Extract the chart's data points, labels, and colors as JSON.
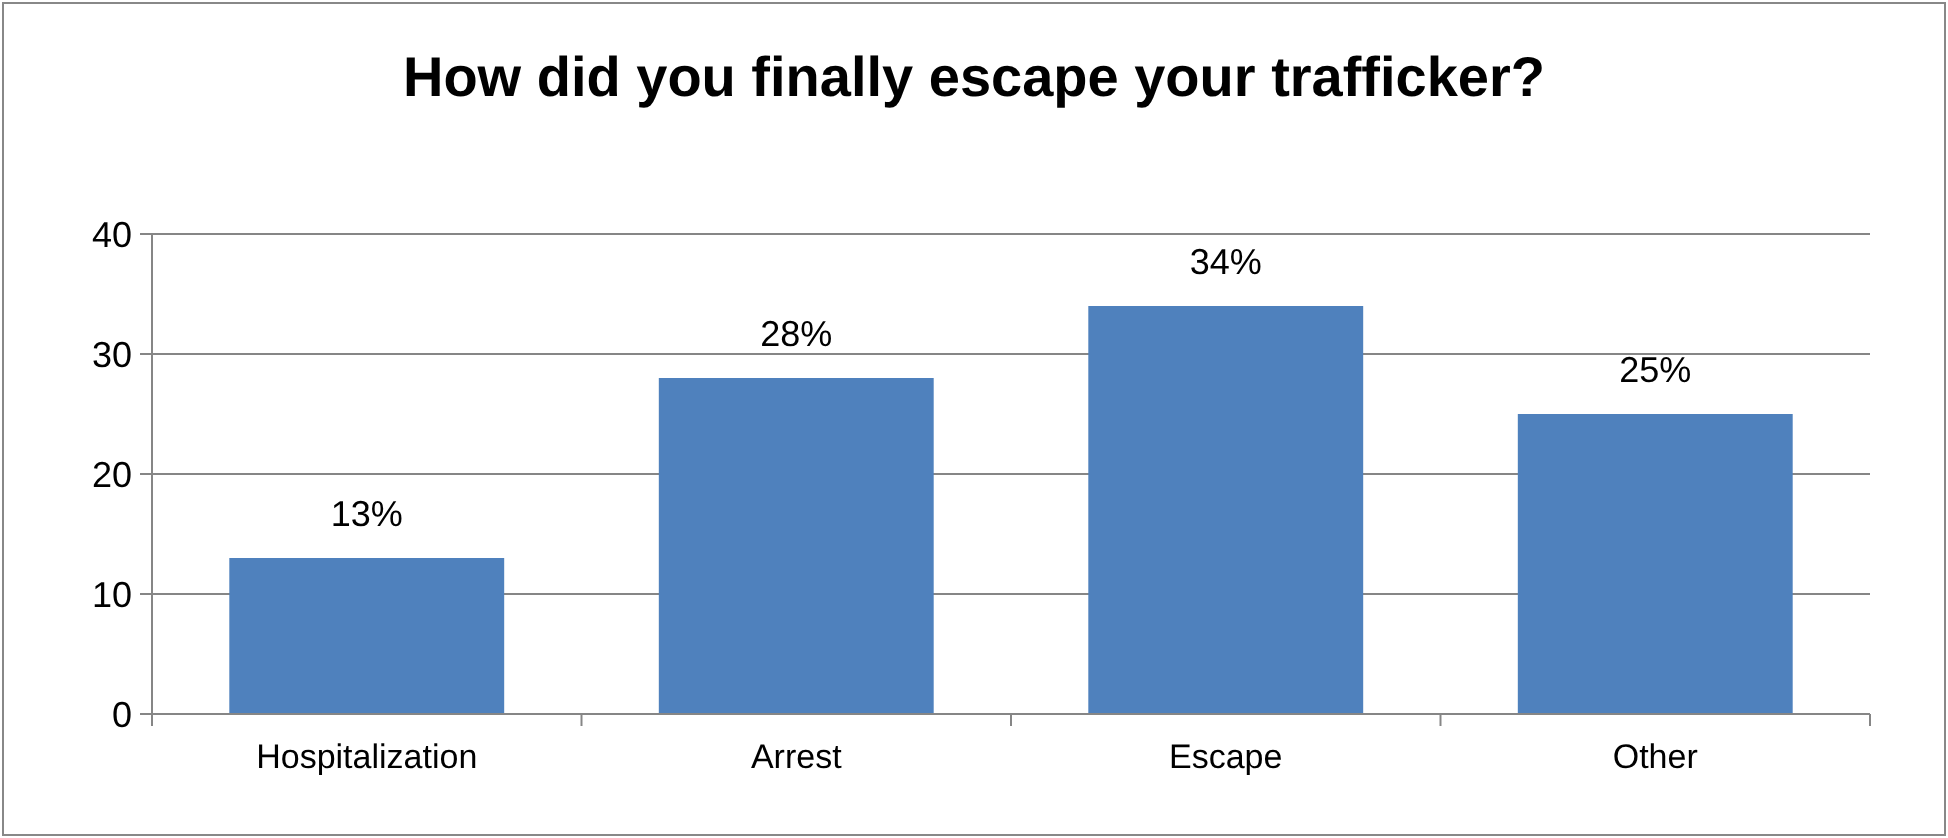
{
  "chart_data": {
    "type": "bar",
    "title": "How did you finally escape your trafficker?",
    "categories": [
      "Hospitalization",
      "Arrest",
      "Escape",
      "Other"
    ],
    "values": [
      13,
      28,
      34,
      25
    ],
    "color": "#4f81bd",
    "value_labels": [
      "13%",
      "28%",
      "34%",
      "25%"
    ],
    "ylim": [
      0,
      40
    ],
    "yticks": [
      0,
      10,
      20,
      30,
      40
    ],
    "grid": "y"
  }
}
